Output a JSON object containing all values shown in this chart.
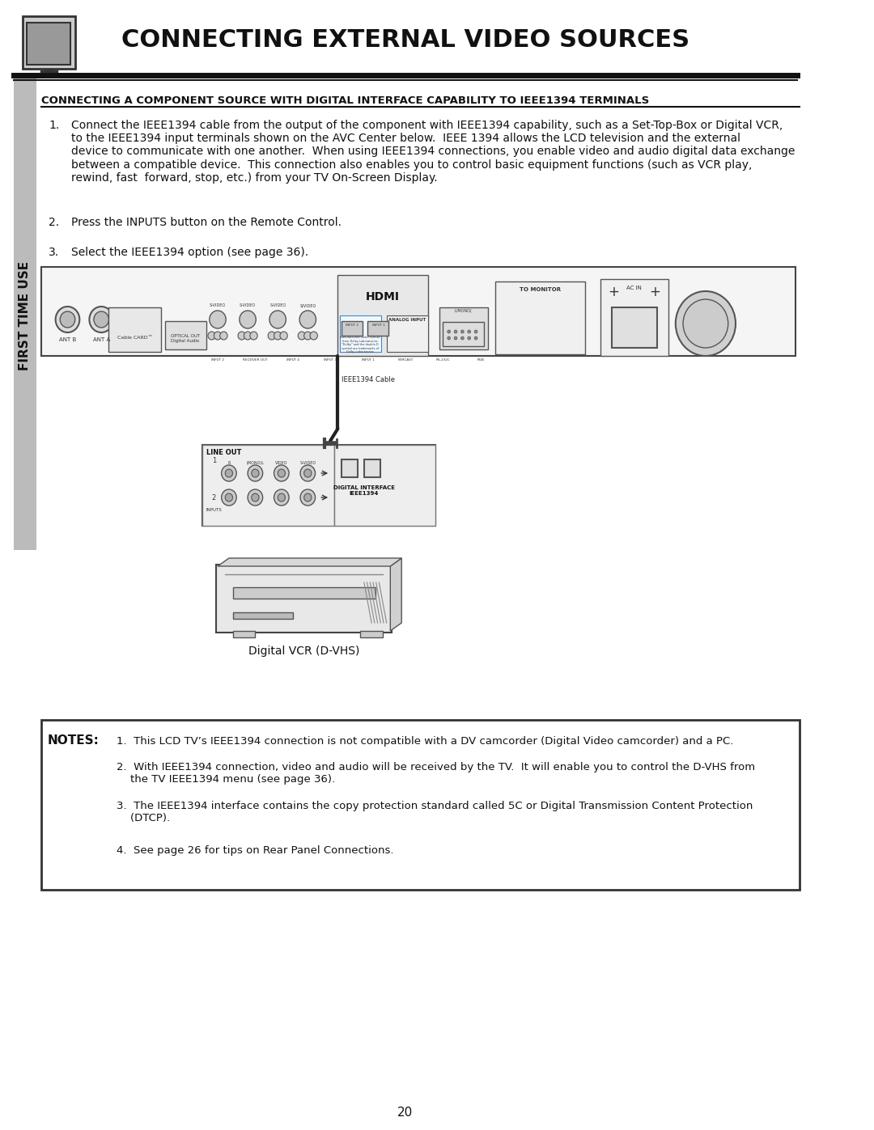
{
  "page_bg": "#ffffff",
  "page_num": "20",
  "title": "CONNECTING EXTERNAL VIDEO SOURCES",
  "sidebar_text": "FIRST TIME USE",
  "header_subtitle": "CONNECTING A COMPONENT SOURCE WITH DIGITAL INTERFACE CAPABILITY TO IEEE1394 TERMINALS",
  "step1": "Connect the IEEE1394 cable from the output of the component with IEEE1394 capability, such as a Set-Top-Box or Digital VCR,\nto the IEEE1394 input terminals shown on the AVC Center below.  IEEE 1394 allows the LCD television and the external\ndevice to communicate with one another.  When using IEEE1394 connections, you enable video and audio digital data exchange\nbetween a compatible device.  This connection also enables you to control basic equipment functions (such as VCR play,\nrewind, fast  forward, stop, etc.) from your TV On-Screen Display.",
  "step2": "Press the INPUTS button on the Remote Control.",
  "step3": "Select the IEEE1394 option (see page 36).",
  "vcr_label": "Digital VCR (D-VHS)",
  "notes_label": "NOTES:",
  "note1": "1.  This LCD TV’s IEEE1394 connection is not compatible with a DV camcorder (Digital Video camcorder) and a PC.",
  "note2": "2.  With IEEE1394 connection, video and audio will be received by the TV.  It will enable you to control the D-VHS from\n    the TV IEEE1394 menu (see page 36).",
  "note3": "3.  The IEEE1394 interface contains the copy protection standard called 5C or Digital Transmission Content Protection\n    (DTCP).",
  "note4": "4.  See page 26 for tips on Rear Panel Connections.",
  "line_color": "#222222",
  "sidebar_bg": "#aaaaaa",
  "notes_box_border": "#333333"
}
